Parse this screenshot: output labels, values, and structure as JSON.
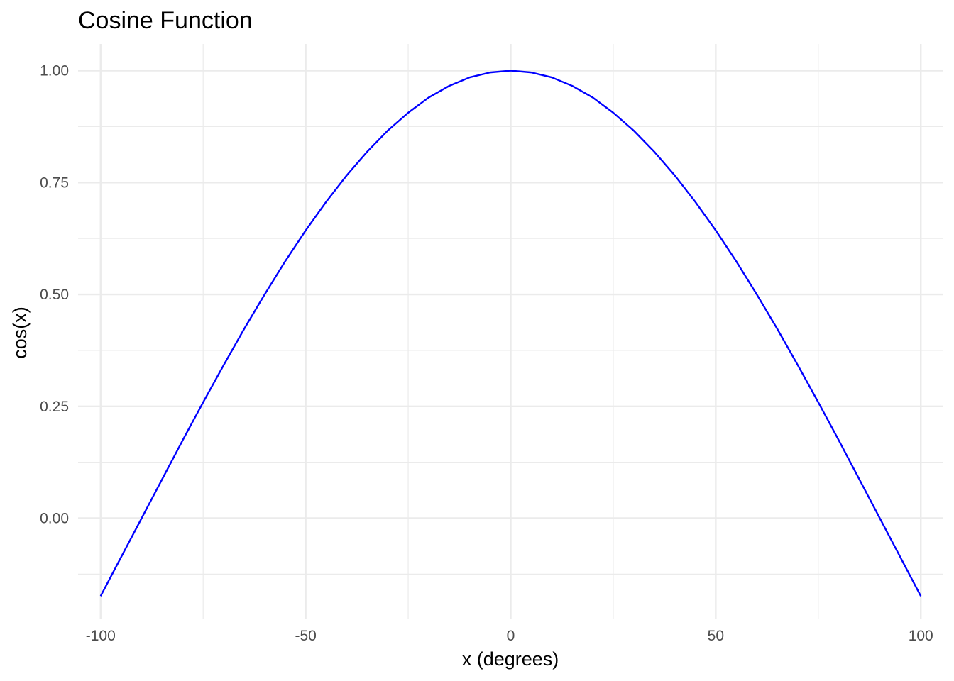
{
  "chart_data": {
    "type": "line",
    "title": "Cosine Function",
    "xlabel": "x (degrees)",
    "ylabel": "cos(x)",
    "xlim": [
      -105.5,
      105.5
    ],
    "ylim": [
      -0.2259,
      1.0596
    ],
    "grid": true,
    "legend": "none",
    "x_ticks": [
      -100,
      -50,
      0,
      50,
      100
    ],
    "x_tick_labels": [
      "-100",
      "-50",
      "0",
      "50",
      "100"
    ],
    "x_minor_ticks": [
      -75,
      -25,
      25,
      75
    ],
    "y_ticks": [
      0,
      0.25,
      0.5,
      0.75,
      1.0
    ],
    "y_tick_labels": [
      "0.00",
      "0.25",
      "0.50",
      "0.75",
      "1.00"
    ],
    "y_minor_ticks": [
      -0.125,
      0.125,
      0.375,
      0.625,
      0.875
    ],
    "series": [
      {
        "color": "#0000ff",
        "function": "cos(x in degrees)",
        "x": [
          -100,
          -95,
          -90,
          -85,
          -80,
          -75,
          -70,
          -65,
          -60,
          -55,
          -50,
          -45,
          -40,
          -35,
          -30,
          -25,
          -20,
          -15,
          -10,
          -5,
          0,
          5,
          10,
          15,
          20,
          25,
          30,
          35,
          40,
          45,
          50,
          55,
          60,
          65,
          70,
          75,
          80,
          85,
          90,
          95,
          100
        ],
        "y": [
          -0.174,
          -0.087,
          0.0,
          0.087,
          0.174,
          0.259,
          0.342,
          0.423,
          0.5,
          0.574,
          0.643,
          0.707,
          0.766,
          0.819,
          0.866,
          0.906,
          0.94,
          0.966,
          0.985,
          0.996,
          1.0,
          0.996,
          0.985,
          0.966,
          0.94,
          0.906,
          0.866,
          0.819,
          0.766,
          0.707,
          0.643,
          0.574,
          0.5,
          0.423,
          0.342,
          0.259,
          0.174,
          0.087,
          0.0,
          -0.087,
          -0.174
        ]
      }
    ]
  }
}
